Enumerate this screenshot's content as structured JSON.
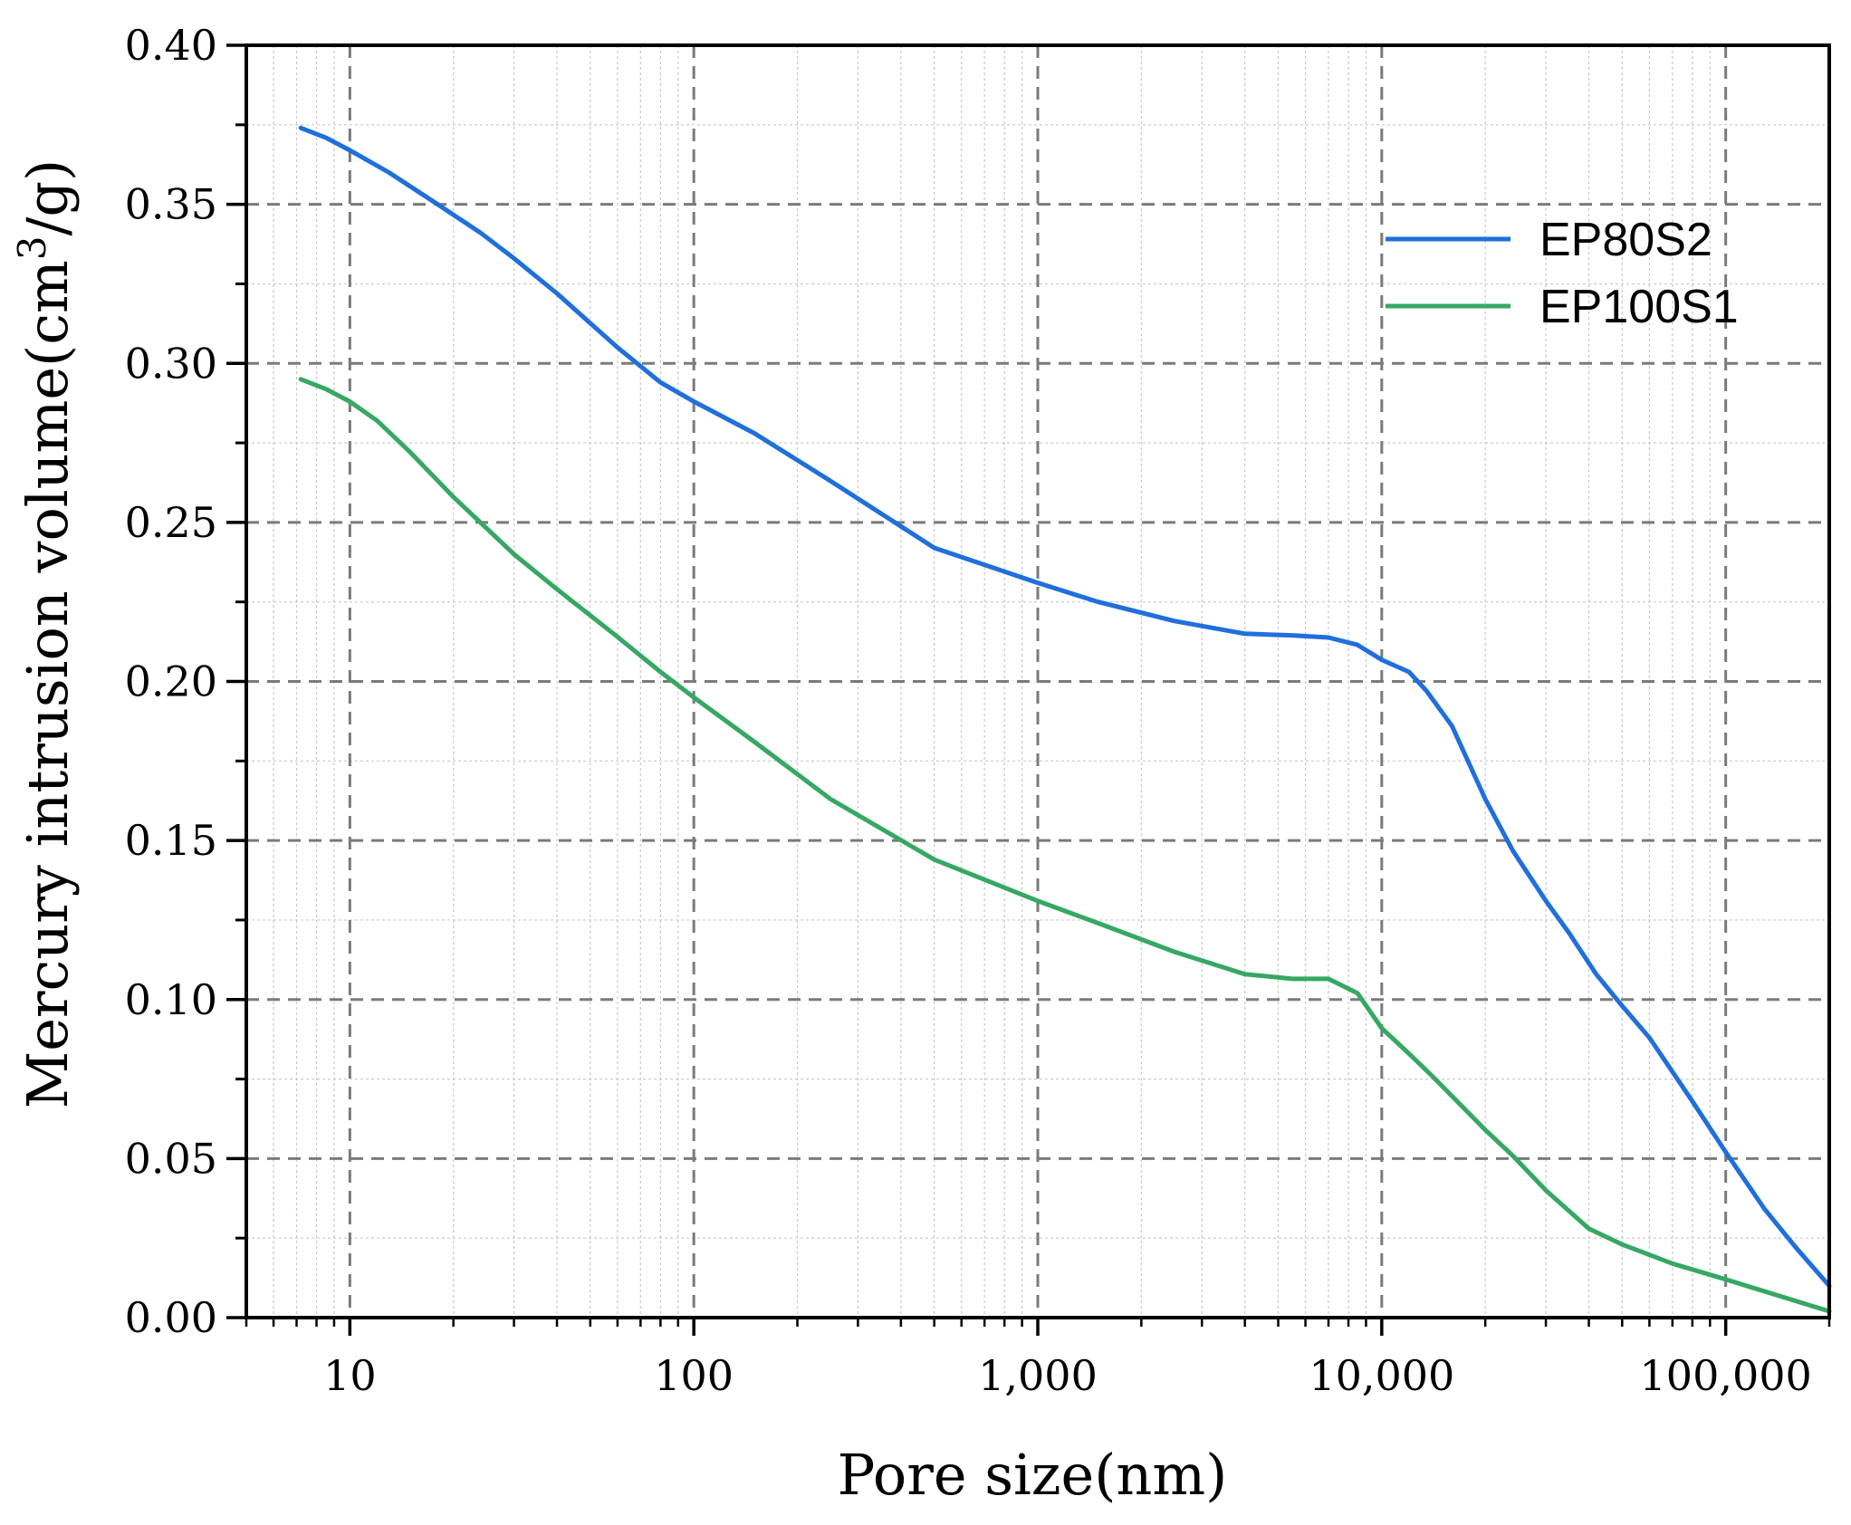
{
  "chart_data": {
    "type": "line",
    "title": "",
    "xlabel": "Pore size(nm)",
    "ylabel_main": "Mercury intrusion volume(cm",
    "ylabel_sup": "3",
    "ylabel_tail": "/g)",
    "x_scale": "log",
    "xlim": [
      5,
      200000
    ],
    "ylim": [
      0,
      0.4
    ],
    "x_ticks": [
      {
        "value": 10,
        "label": "10"
      },
      {
        "value": 100,
        "label": "100"
      },
      {
        "value": 1000,
        "label": "1,000"
      },
      {
        "value": 10000,
        "label": "10,000"
      },
      {
        "value": 100000,
        "label": "100,000"
      }
    ],
    "y_ticks": [
      {
        "value": 0.0,
        "label": "0.00"
      },
      {
        "value": 0.05,
        "label": "0.05"
      },
      {
        "value": 0.1,
        "label": "0.10"
      },
      {
        "value": 0.15,
        "label": "0.15"
      },
      {
        "value": 0.2,
        "label": "0.20"
      },
      {
        "value": 0.25,
        "label": "0.25"
      },
      {
        "value": 0.3,
        "label": "0.30"
      },
      {
        "value": 0.35,
        "label": "0.35"
      },
      {
        "value": 0.4,
        "label": "0.40"
      }
    ],
    "grid": true,
    "legend_position": "top-right",
    "series": [
      {
        "name": "EP80S2",
        "color": "#1f6fdc",
        "points": [
          [
            7.2,
            0.374
          ],
          [
            8.5,
            0.371
          ],
          [
            10,
            0.367
          ],
          [
            13,
            0.36
          ],
          [
            18,
            0.35
          ],
          [
            24,
            0.341
          ],
          [
            30,
            0.333
          ],
          [
            40,
            0.322
          ],
          [
            60,
            0.305
          ],
          [
            80,
            0.294
          ],
          [
            100,
            0.288
          ],
          [
            150,
            0.278
          ],
          [
            250,
            0.263
          ],
          [
            500,
            0.242
          ],
          [
            1000,
            0.231
          ],
          [
            1500,
            0.225
          ],
          [
            2500,
            0.219
          ],
          [
            4000,
            0.215
          ],
          [
            5500,
            0.2145
          ],
          [
            7000,
            0.2138
          ],
          [
            8500,
            0.2115
          ],
          [
            10000,
            0.2068
          ],
          [
            12000,
            0.203
          ],
          [
            13500,
            0.197
          ],
          [
            16000,
            0.186
          ],
          [
            20000,
            0.163
          ],
          [
            24000,
            0.147
          ],
          [
            30000,
            0.131
          ],
          [
            35000,
            0.121
          ],
          [
            42000,
            0.108
          ],
          [
            50000,
            0.098
          ],
          [
            60000,
            0.088
          ],
          [
            80000,
            0.068
          ],
          [
            100000,
            0.052
          ],
          [
            130000,
            0.034
          ],
          [
            160000,
            0.022
          ],
          [
            200000,
            0.01
          ]
        ]
      },
      {
        "name": "EP100S1",
        "color": "#36a864",
        "points": [
          [
            7.2,
            0.295
          ],
          [
            8.5,
            0.292
          ],
          [
            10,
            0.288
          ],
          [
            12,
            0.282
          ],
          [
            15,
            0.272
          ],
          [
            20,
            0.258
          ],
          [
            30,
            0.24
          ],
          [
            40,
            0.229
          ],
          [
            60,
            0.214
          ],
          [
            80,
            0.203
          ],
          [
            100,
            0.195
          ],
          [
            150,
            0.181
          ],
          [
            250,
            0.163
          ],
          [
            500,
            0.144
          ],
          [
            1000,
            0.131
          ],
          [
            1500,
            0.124
          ],
          [
            2500,
            0.115
          ],
          [
            4000,
            0.108
          ],
          [
            5500,
            0.1065
          ],
          [
            7000,
            0.1065
          ],
          [
            8500,
            0.102
          ],
          [
            10000,
            0.091
          ],
          [
            12000,
            0.083
          ],
          [
            14000,
            0.076
          ],
          [
            20000,
            0.059
          ],
          [
            24000,
            0.051
          ],
          [
            30000,
            0.04
          ],
          [
            40000,
            0.028
          ],
          [
            50000,
            0.023
          ],
          [
            70000,
            0.017
          ],
          [
            100000,
            0.012
          ],
          [
            200000,
            0.002
          ]
        ]
      }
    ]
  }
}
